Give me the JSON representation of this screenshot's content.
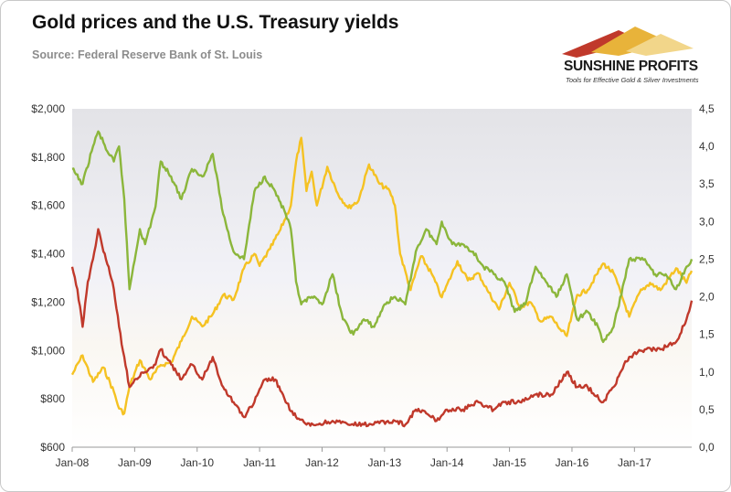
{
  "chart_data": {
    "type": "line",
    "title": "Gold prices and the U.S. Treasury yields",
    "subtitle": "Source: Federal Reserve Bank of St. Louis",
    "x_ticks": [
      "Jan-08",
      "Jan-09",
      "Jan-10",
      "Jan-11",
      "Jan-12",
      "Jan-13",
      "Jan-14",
      "Jan-15",
      "Jan-16",
      "Jan-17"
    ],
    "x_range": [
      "2008-01",
      "2017-12"
    ],
    "y_left": {
      "ylim": [
        600,
        2000
      ],
      "tick_labels": [
        "$600",
        "$800",
        "$1,000",
        "$1,200",
        "$1,400",
        "$1,600",
        "$1,800",
        "$2,000"
      ]
    },
    "y_right": {
      "ylim": [
        0,
        4.5
      ],
      "tick_labels": [
        "0,0",
        "0,5",
        "1,0",
        "1,5",
        "2,0",
        "2,5",
        "3,0",
        "3,5",
        "4,0",
        "4,5"
      ]
    },
    "grid": false,
    "legend": "none",
    "series": [
      {
        "axis": "left",
        "color": "#f5c222",
        "points": [
          [
            "2008-01",
            900
          ],
          [
            "2008-03",
            980
          ],
          [
            "2008-05",
            870
          ],
          [
            "2008-07",
            930
          ],
          [
            "2008-09",
            830
          ],
          [
            "2008-10",
            760
          ],
          [
            "2008-11",
            740
          ],
          [
            "2008-12",
            850
          ],
          [
            "2009-02",
            960
          ],
          [
            "2009-04",
            880
          ],
          [
            "2009-06",
            940
          ],
          [
            "2009-08",
            950
          ],
          [
            "2009-10",
            1040
          ],
          [
            "2009-12",
            1140
          ],
          [
            "2010-02",
            1100
          ],
          [
            "2010-04",
            1150
          ],
          [
            "2010-06",
            1230
          ],
          [
            "2010-08",
            1210
          ],
          [
            "2010-10",
            1340
          ],
          [
            "2010-12",
            1400
          ],
          [
            "2011-01",
            1350
          ],
          [
            "2011-03",
            1420
          ],
          [
            "2011-05",
            1500
          ],
          [
            "2011-07",
            1600
          ],
          [
            "2011-08",
            1780
          ],
          [
            "2011-09",
            1880
          ],
          [
            "2011-10",
            1660
          ],
          [
            "2011-11",
            1740
          ],
          [
            "2011-12",
            1600
          ],
          [
            "2012-02",
            1760
          ],
          [
            "2012-04",
            1650
          ],
          [
            "2012-06",
            1590
          ],
          [
            "2012-08",
            1620
          ],
          [
            "2012-10",
            1770
          ],
          [
            "2012-12",
            1690
          ],
          [
            "2013-02",
            1660
          ],
          [
            "2013-03",
            1600
          ],
          [
            "2013-04",
            1400
          ],
          [
            "2013-06",
            1250
          ],
          [
            "2013-08",
            1390
          ],
          [
            "2013-10",
            1320
          ],
          [
            "2013-12",
            1220
          ],
          [
            "2014-03",
            1370
          ],
          [
            "2014-05",
            1290
          ],
          [
            "2014-07",
            1320
          ],
          [
            "2014-09",
            1240
          ],
          [
            "2014-11",
            1170
          ],
          [
            "2015-01",
            1280
          ],
          [
            "2015-03",
            1180
          ],
          [
            "2015-05",
            1200
          ],
          [
            "2015-07",
            1120
          ],
          [
            "2015-09",
            1140
          ],
          [
            "2015-11",
            1080
          ],
          [
            "2015-12",
            1060
          ],
          [
            "2016-02",
            1230
          ],
          [
            "2016-04",
            1250
          ],
          [
            "2016-07",
            1360
          ],
          [
            "2016-09",
            1320
          ],
          [
            "2016-11",
            1200
          ],
          [
            "2016-12",
            1140
          ],
          [
            "2017-02",
            1240
          ],
          [
            "2017-04",
            1280
          ],
          [
            "2017-06",
            1250
          ],
          [
            "2017-09",
            1340
          ],
          [
            "2017-11",
            1280
          ],
          [
            "2017-12",
            1330
          ]
        ]
      },
      {
        "axis": "right",
        "color": "#8bb63b",
        "points": [
          [
            "2008-01",
            3.7
          ],
          [
            "2008-03",
            3.5
          ],
          [
            "2008-05",
            4.0
          ],
          [
            "2008-06",
            4.2
          ],
          [
            "2008-08",
            3.9
          ],
          [
            "2008-09",
            3.8
          ],
          [
            "2008-10",
            4.0
          ],
          [
            "2008-11",
            3.3
          ],
          [
            "2008-12",
            2.1
          ],
          [
            "2009-02",
            2.9
          ],
          [
            "2009-03",
            2.7
          ],
          [
            "2009-05",
            3.2
          ],
          [
            "2009-06",
            3.8
          ],
          [
            "2009-08",
            3.6
          ],
          [
            "2009-10",
            3.3
          ],
          [
            "2009-12",
            3.7
          ],
          [
            "2010-02",
            3.6
          ],
          [
            "2010-04",
            3.9
          ],
          [
            "2010-06",
            3.1
          ],
          [
            "2010-08",
            2.6
          ],
          [
            "2010-10",
            2.5
          ],
          [
            "2010-12",
            3.4
          ],
          [
            "2011-02",
            3.6
          ],
          [
            "2011-04",
            3.4
          ],
          [
            "2011-06",
            3.1
          ],
          [
            "2011-07",
            2.9
          ],
          [
            "2011-08",
            2.2
          ],
          [
            "2011-09",
            1.9
          ],
          [
            "2011-11",
            2.0
          ],
          [
            "2012-01",
            1.9
          ],
          [
            "2012-03",
            2.3
          ],
          [
            "2012-05",
            1.7
          ],
          [
            "2012-07",
            1.5
          ],
          [
            "2012-09",
            1.7
          ],
          [
            "2012-11",
            1.6
          ],
          [
            "2013-01",
            1.9
          ],
          [
            "2013-03",
            2.0
          ],
          [
            "2013-05",
            1.9
          ],
          [
            "2013-07",
            2.6
          ],
          [
            "2013-09",
            2.9
          ],
          [
            "2013-11",
            2.7
          ],
          [
            "2013-12",
            3.0
          ],
          [
            "2014-02",
            2.7
          ],
          [
            "2014-04",
            2.7
          ],
          [
            "2014-06",
            2.6
          ],
          [
            "2014-08",
            2.4
          ],
          [
            "2014-10",
            2.3
          ],
          [
            "2014-12",
            2.2
          ],
          [
            "2015-02",
            1.8
          ],
          [
            "2015-04",
            1.9
          ],
          [
            "2015-06",
            2.4
          ],
          [
            "2015-08",
            2.2
          ],
          [
            "2015-10",
            2.0
          ],
          [
            "2015-12",
            2.3
          ],
          [
            "2016-02",
            1.7
          ],
          [
            "2016-04",
            1.8
          ],
          [
            "2016-06",
            1.6
          ],
          [
            "2016-07",
            1.4
          ],
          [
            "2016-09",
            1.6
          ],
          [
            "2016-11",
            2.2
          ],
          [
            "2016-12",
            2.5
          ],
          [
            "2017-03",
            2.5
          ],
          [
            "2017-05",
            2.3
          ],
          [
            "2017-07",
            2.3
          ],
          [
            "2017-09",
            2.1
          ],
          [
            "2017-11",
            2.4
          ],
          [
            "2017-12",
            2.5
          ]
        ]
      },
      {
        "axis": "right",
        "color": "#c0392b",
        "points": [
          [
            "2008-01",
            2.4
          ],
          [
            "2008-02",
            2.1
          ],
          [
            "2008-03",
            1.6
          ],
          [
            "2008-04",
            2.2
          ],
          [
            "2008-05",
            2.5
          ],
          [
            "2008-06",
            2.9
          ],
          [
            "2008-07",
            2.6
          ],
          [
            "2008-08",
            2.4
          ],
          [
            "2008-09",
            2.1
          ],
          [
            "2008-10",
            1.6
          ],
          [
            "2008-11",
            1.2
          ],
          [
            "2008-12",
            0.8
          ],
          [
            "2009-01",
            0.9
          ],
          [
            "2009-03",
            1.0
          ],
          [
            "2009-05",
            1.1
          ],
          [
            "2009-06",
            1.3
          ],
          [
            "2009-08",
            1.1
          ],
          [
            "2009-10",
            0.9
          ],
          [
            "2009-12",
            1.1
          ],
          [
            "2010-02",
            0.9
          ],
          [
            "2010-04",
            1.2
          ],
          [
            "2010-06",
            0.8
          ],
          [
            "2010-08",
            0.6
          ],
          [
            "2010-10",
            0.4
          ],
          [
            "2010-12",
            0.6
          ],
          [
            "2011-02",
            0.9
          ],
          [
            "2011-04",
            0.9
          ],
          [
            "2011-06",
            0.6
          ],
          [
            "2011-08",
            0.4
          ],
          [
            "2011-10",
            0.3
          ],
          [
            "2011-12",
            0.3
          ],
          [
            "2012-03",
            0.35
          ],
          [
            "2012-06",
            0.3
          ],
          [
            "2012-09",
            0.3
          ],
          [
            "2012-12",
            0.32
          ],
          [
            "2013-03",
            0.35
          ],
          [
            "2013-05",
            0.3
          ],
          [
            "2013-07",
            0.5
          ],
          [
            "2013-09",
            0.45
          ],
          [
            "2013-11",
            0.35
          ],
          [
            "2014-01",
            0.5
          ],
          [
            "2014-04",
            0.5
          ],
          [
            "2014-07",
            0.6
          ],
          [
            "2014-10",
            0.5
          ],
          [
            "2014-12",
            0.6
          ],
          [
            "2015-03",
            0.6
          ],
          [
            "2015-06",
            0.7
          ],
          [
            "2015-09",
            0.7
          ],
          [
            "2015-12",
            1.0
          ],
          [
            "2016-02",
            0.8
          ],
          [
            "2016-04",
            0.8
          ],
          [
            "2016-07",
            0.6
          ],
          [
            "2016-09",
            0.8
          ],
          [
            "2016-11",
            1.1
          ],
          [
            "2016-12",
            1.2
          ],
          [
            "2017-03",
            1.3
          ],
          [
            "2017-06",
            1.3
          ],
          [
            "2017-09",
            1.4
          ],
          [
            "2017-11",
            1.7
          ],
          [
            "2017-12",
            1.95
          ]
        ]
      }
    ]
  },
  "logo": {
    "name": "SUNSHINE PROFITS",
    "tagline": "Tools for Effective Gold & Silver Investments"
  }
}
